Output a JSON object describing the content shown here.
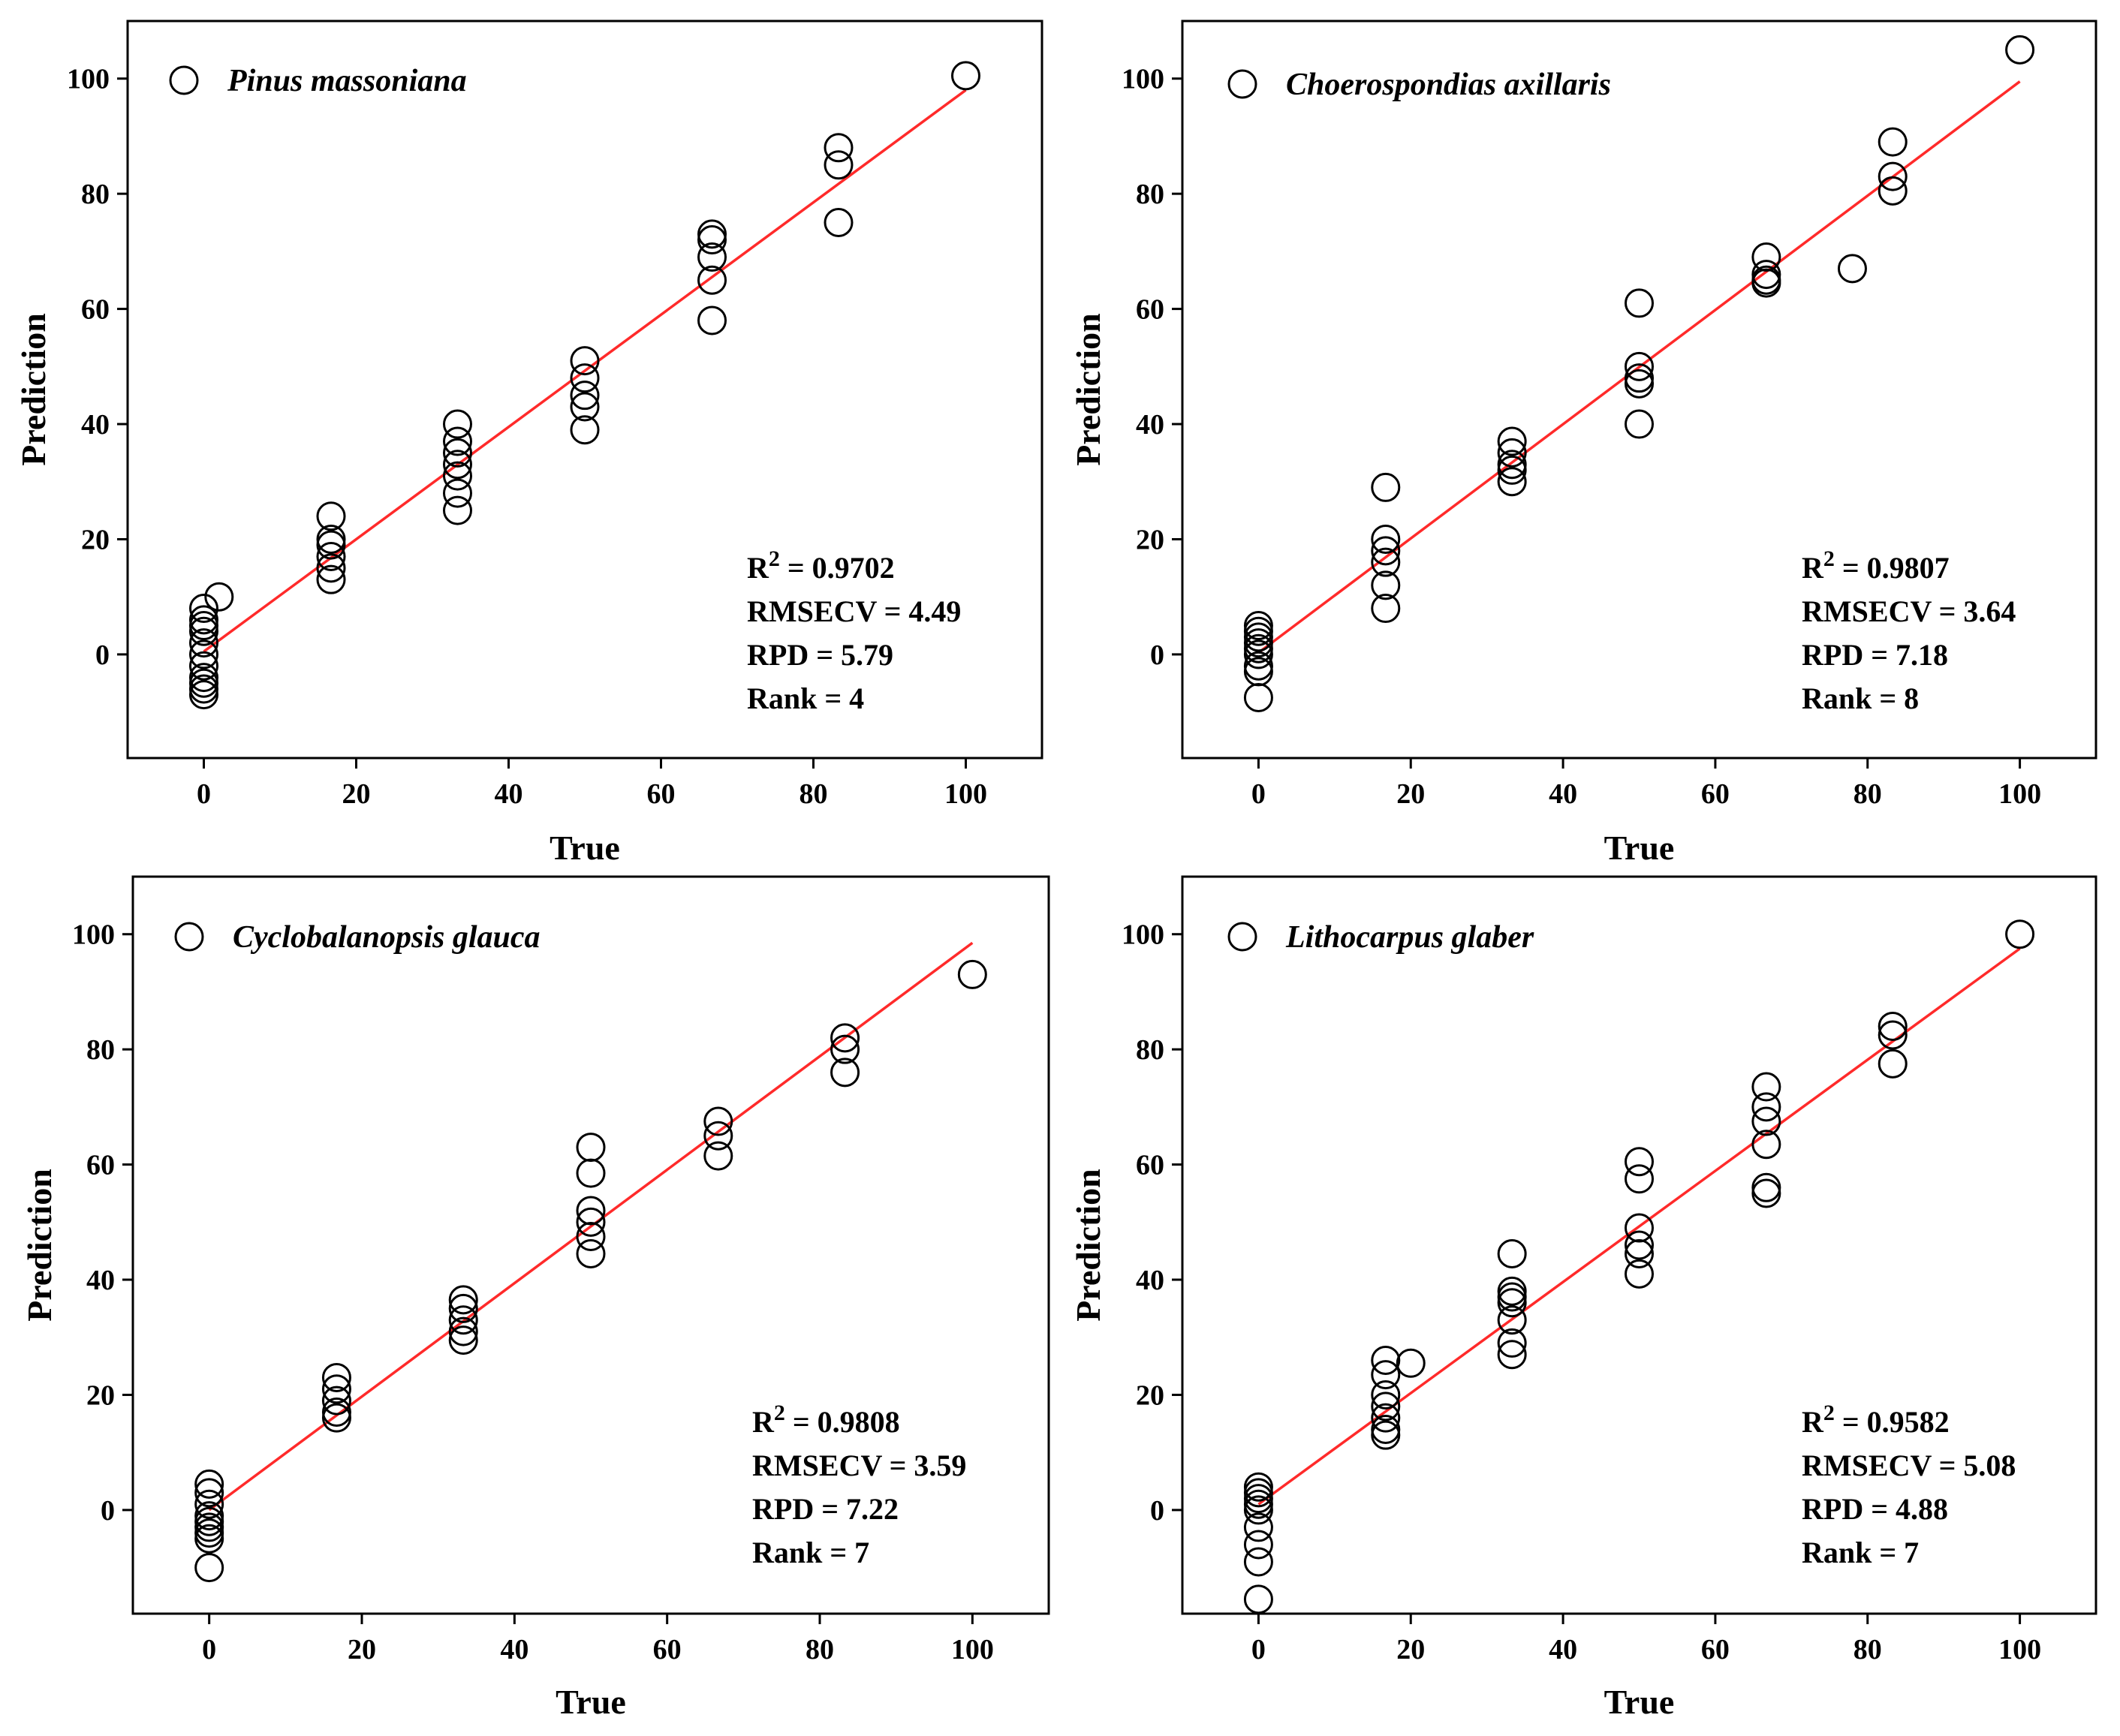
{
  "chart_data": [
    {
      "type": "scatter",
      "legend": "Pinus massoniana",
      "xlabel": "True",
      "ylabel": "Prediction",
      "xlim": [
        -10,
        110
      ],
      "ylim": [
        -18,
        110
      ],
      "xticks": [
        0,
        20,
        40,
        60,
        80,
        100
      ],
      "yticks": [
        0,
        20,
        40,
        60,
        80,
        100
      ],
      "points": [
        [
          0,
          8
        ],
        [
          0,
          6
        ],
        [
          0,
          4
        ],
        [
          0,
          2
        ],
        [
          0,
          0
        ],
        [
          0,
          -2
        ],
        [
          0,
          -4
        ],
        [
          0,
          -6
        ],
        [
          0,
          -7
        ],
        [
          0,
          5
        ],
        [
          0,
          -5
        ],
        [
          2,
          10
        ],
        [
          16.7,
          24
        ],
        [
          16.7,
          19
        ],
        [
          16.7,
          17
        ],
        [
          16.7,
          15
        ],
        [
          16.7,
          13
        ],
        [
          16.7,
          20
        ],
        [
          33.3,
          40
        ],
        [
          33.3,
          37
        ],
        [
          33.3,
          35
        ],
        [
          33.3,
          33
        ],
        [
          33.3,
          31
        ],
        [
          33.3,
          28
        ],
        [
          33.3,
          25
        ],
        [
          50,
          51
        ],
        [
          50,
          48
        ],
        [
          50,
          45
        ],
        [
          50,
          43
        ],
        [
          50,
          39
        ],
        [
          66.7,
          73
        ],
        [
          66.7,
          72
        ],
        [
          66.7,
          69
        ],
        [
          66.7,
          65
        ],
        [
          66.7,
          58
        ],
        [
          83.3,
          88
        ],
        [
          83.3,
          85
        ],
        [
          83.3,
          75
        ],
        [
          100,
          100.5
        ]
      ],
      "fit_line": {
        "x": [
          0,
          100
        ],
        "y": [
          0.5,
          98
        ],
        "color": "#ff2a2a"
      },
      "stats": {
        "r2_label": "R",
        "r2_sup": "2",
        "r2_value": " = 0.9702",
        "rmsecv": "RMSECV = 4.49",
        "rpd": "RPD = 5.79",
        "rank": "Rank = 4"
      }
    },
    {
      "type": "scatter",
      "legend": "Choerospondias axillaris",
      "xlabel": "True",
      "ylabel": "Prediction",
      "xlim": [
        -10,
        110
      ],
      "ylim": [
        -18,
        110
      ],
      "xticks": [
        0,
        20,
        40,
        60,
        80,
        100
      ],
      "yticks": [
        0,
        20,
        40,
        60,
        80,
        100
      ],
      "points": [
        [
          0,
          5
        ],
        [
          0,
          4
        ],
        [
          0,
          3
        ],
        [
          0,
          2
        ],
        [
          0,
          0
        ],
        [
          0,
          -2
        ],
        [
          0,
          -3
        ],
        [
          0,
          -7.5
        ],
        [
          0,
          1
        ],
        [
          16.7,
          29
        ],
        [
          16.7,
          20
        ],
        [
          16.7,
          18
        ],
        [
          16.7,
          16
        ],
        [
          16.7,
          12
        ],
        [
          16.7,
          8
        ],
        [
          33.3,
          37
        ],
        [
          33.3,
          35
        ],
        [
          33.3,
          33
        ],
        [
          33.3,
          32
        ],
        [
          33.3,
          30
        ],
        [
          50,
          61
        ],
        [
          50,
          50
        ],
        [
          50,
          48
        ],
        [
          50,
          47
        ],
        [
          50,
          40
        ],
        [
          66.7,
          69
        ],
        [
          66.7,
          66
        ],
        [
          66.7,
          65
        ],
        [
          66.7,
          64.5
        ],
        [
          78,
          67
        ],
        [
          83.3,
          89
        ],
        [
          83.3,
          83
        ],
        [
          83.3,
          80.5
        ],
        [
          100,
          105
        ]
      ],
      "fit_line": {
        "x": [
          0,
          100
        ],
        "y": [
          0.3,
          99.5
        ],
        "color": "#ff2a2a"
      },
      "stats": {
        "r2_label": "R",
        "r2_sup": "2",
        "r2_value": " = 0.9807",
        "rmsecv": "RMSECV = 3.64",
        "rpd": "RPD = 7.18",
        "rank": "Rank = 8"
      }
    },
    {
      "type": "scatter",
      "legend": "Cyclobalanopsis glauca",
      "xlabel": "True",
      "ylabel": "Prediction",
      "xlim": [
        -10,
        110
      ],
      "ylim": [
        -18,
        110
      ],
      "xticks": [
        0,
        20,
        40,
        60,
        80,
        100
      ],
      "yticks": [
        0,
        20,
        40,
        60,
        80,
        100
      ],
      "points": [
        [
          0,
          4.5
        ],
        [
          0,
          3
        ],
        [
          0,
          1
        ],
        [
          0,
          -1
        ],
        [
          0,
          -2
        ],
        [
          0,
          -3
        ],
        [
          0,
          -4
        ],
        [
          0,
          -5
        ],
        [
          0,
          -10
        ],
        [
          16.7,
          23
        ],
        [
          16.7,
          21
        ],
        [
          16.7,
          19
        ],
        [
          16.7,
          17
        ],
        [
          16.7,
          16
        ],
        [
          33.3,
          36.5
        ],
        [
          33.3,
          35
        ],
        [
          33.3,
          33
        ],
        [
          33.3,
          31
        ],
        [
          33.3,
          29.5
        ],
        [
          50,
          63
        ],
        [
          50,
          58.5
        ],
        [
          50,
          52
        ],
        [
          50,
          50
        ],
        [
          50,
          47.5
        ],
        [
          50,
          44.5
        ],
        [
          66.7,
          67.5
        ],
        [
          66.7,
          65
        ],
        [
          66.7,
          61.5
        ],
        [
          83.3,
          82
        ],
        [
          83.3,
          80
        ],
        [
          83.3,
          76
        ],
        [
          100,
          93
        ]
      ],
      "fit_line": {
        "x": [
          0,
          100
        ],
        "y": [
          0,
          98.5
        ],
        "color": "#ff2a2a"
      },
      "stats": {
        "r2_label": "R",
        "r2_sup": "2",
        "r2_value": " = 0.9808",
        "rmsecv": "RMSECV = 3.59",
        "rpd": "RPD = 7.22",
        "rank": "Rank = 7"
      }
    },
    {
      "type": "scatter",
      "legend": "Lithocarpus glaber",
      "xlabel": "True",
      "ylabel": "Prediction",
      "xlim": [
        -10,
        110
      ],
      "ylim": [
        -18,
        110
      ],
      "xticks": [
        0,
        20,
        40,
        60,
        80,
        100
      ],
      "yticks": [
        0,
        20,
        40,
        60,
        80,
        100
      ],
      "points": [
        [
          0,
          4
        ],
        [
          0,
          3
        ],
        [
          0,
          2
        ],
        [
          0,
          1
        ],
        [
          0,
          0
        ],
        [
          0,
          -3
        ],
        [
          0,
          -6
        ],
        [
          0,
          -9
        ],
        [
          0,
          -15.5
        ],
        [
          16.7,
          26
        ],
        [
          16.7,
          23.5
        ],
        [
          16.7,
          20
        ],
        [
          16.7,
          18
        ],
        [
          16.7,
          16
        ],
        [
          16.7,
          14
        ],
        [
          16.7,
          13
        ],
        [
          20,
          25.5
        ],
        [
          33.3,
          44.5
        ],
        [
          33.3,
          38
        ],
        [
          33.3,
          37
        ],
        [
          33.3,
          36
        ],
        [
          33.3,
          33
        ],
        [
          33.3,
          29
        ],
        [
          33.3,
          27
        ],
        [
          50,
          60.5
        ],
        [
          50,
          57.5
        ],
        [
          50,
          49
        ],
        [
          50,
          46
        ],
        [
          50,
          44.5
        ],
        [
          50,
          41
        ],
        [
          66.7,
          73.5
        ],
        [
          66.7,
          70
        ],
        [
          66.7,
          67.5
        ],
        [
          66.7,
          63.5
        ],
        [
          66.7,
          56
        ],
        [
          66.7,
          55
        ],
        [
          83.3,
          84
        ],
        [
          83.3,
          82.5
        ],
        [
          83.3,
          77.5
        ],
        [
          100,
          100
        ]
      ],
      "fit_line": {
        "x": [
          0,
          100
        ],
        "y": [
          1,
          97.5
        ],
        "color": "#ff2a2a"
      },
      "stats": {
        "r2_label": "R",
        "r2_sup": "2",
        "r2_value": " = 0.9582",
        "rmsecv": "RMSECV = 5.08",
        "rpd": "RPD = 4.88",
        "rank": "Rank = 7"
      }
    }
  ]
}
